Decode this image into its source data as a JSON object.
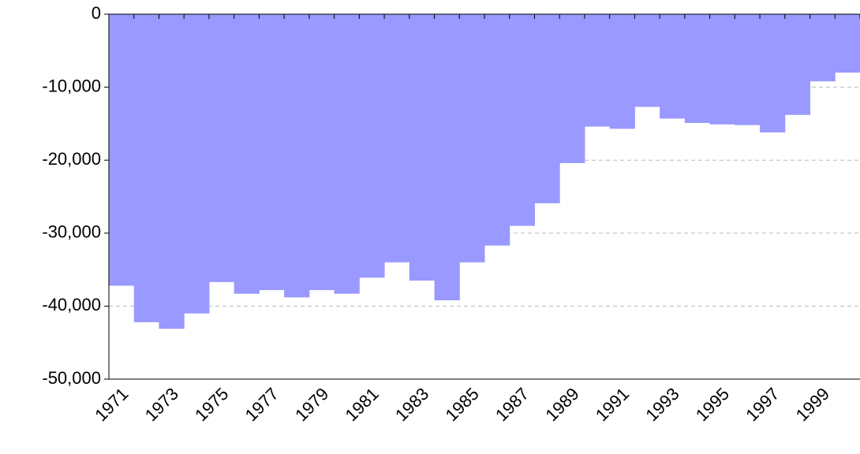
{
  "chart_data": {
    "type": "bar",
    "categories": [
      "1971",
      null,
      "1973",
      null,
      "1975",
      null,
      "1977",
      null,
      "1979",
      null,
      "1981",
      null,
      "1983",
      null,
      "1985",
      null,
      "1987",
      null,
      "1989",
      null,
      "1991",
      null,
      "1993",
      null,
      "1995",
      null,
      "1997",
      null,
      "1999",
      null
    ],
    "values": [
      -37200,
      -42200,
      -43100,
      -41000,
      -36700,
      -38300,
      -37800,
      -38800,
      -37800,
      -38300,
      -36100,
      -34000,
      -36500,
      -39200,
      -34000,
      -31700,
      -29000,
      -25900,
      -20400,
      -15400,
      -15700,
      -12700,
      -14300,
      -14900,
      -15100,
      -15200,
      -16200,
      -13800,
      -9200,
      -8000
    ],
    "color": "#9999ff",
    "ylim": [
      -50000,
      0
    ],
    "yticks": [
      {
        "value": -50000,
        "label": "-50,000"
      },
      {
        "value": -40000,
        "label": "-40,000"
      },
      {
        "value": -30000,
        "label": "-30,000"
      },
      {
        "value": -20000,
        "label": "-20,000"
      },
      {
        "value": -10000,
        "label": "-10,000"
      },
      0
    ],
    "grid": true
  }
}
